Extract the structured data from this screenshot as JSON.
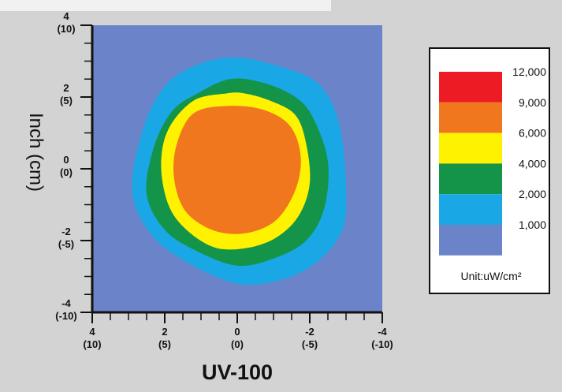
{
  "chart_data": {
    "type": "heatmap",
    "title": "UV-100",
    "xlabel": "",
    "ylabel": "Inch (cm)",
    "x_ticks": [
      {
        "value": 4,
        "inch": "4",
        "cm": "(10)"
      },
      {
        "value": 2,
        "inch": "2",
        "cm": "(5)"
      },
      {
        "value": 0,
        "inch": "0",
        "cm": "(0)"
      },
      {
        "value": -2,
        "inch": "-2",
        "cm": "(-5)"
      },
      {
        "value": -4,
        "inch": "-4",
        "cm": "(-10)"
      }
    ],
    "y_ticks": [
      {
        "value": 4,
        "inch": "4",
        "cm": "(10)"
      },
      {
        "value": 2,
        "inch": "2",
        "cm": "(5)"
      },
      {
        "value": 0,
        "inch": "0",
        "cm": "(0)"
      },
      {
        "value": -2,
        "inch": "-2",
        "cm": "(-5)"
      },
      {
        "value": -4,
        "inch": "-4",
        "cm": "(-10)"
      }
    ],
    "xlim": [
      4,
      -4
    ],
    "ylim": [
      -4,
      4
    ],
    "background_color": "#6b83c8",
    "contours": [
      {
        "level": "1,000",
        "color": "#1aa7e6",
        "points": [
          [
            0.1,
            3.1
          ],
          [
            1.1,
            2.9
          ],
          [
            2.0,
            2.3
          ],
          [
            2.6,
            1.1
          ],
          [
            2.9,
            -0.6
          ],
          [
            2.4,
            -1.8
          ],
          [
            1.4,
            -2.6
          ],
          [
            0.0,
            -3.2
          ],
          [
            -1.2,
            -3.1
          ],
          [
            -2.2,
            -2.6
          ],
          [
            -2.9,
            -1.7
          ],
          [
            -3.0,
            -0.5
          ],
          [
            -2.8,
            1.3
          ],
          [
            -2.2,
            2.4
          ],
          [
            -1.0,
            2.9
          ]
        ]
      },
      {
        "level": "2,000",
        "color": "#149449",
        "points": [
          [
            0.2,
            2.5
          ],
          [
            1.1,
            2.1
          ],
          [
            1.8,
            1.6
          ],
          [
            2.3,
            0.6
          ],
          [
            2.5,
            -0.7
          ],
          [
            2.0,
            -1.7
          ],
          [
            1.1,
            -2.3
          ],
          [
            0.0,
            -2.7
          ],
          [
            -1.0,
            -2.5
          ],
          [
            -1.9,
            -2.0
          ],
          [
            -2.4,
            -1.1
          ],
          [
            -2.5,
            0.2
          ],
          [
            -2.1,
            1.4
          ],
          [
            -1.6,
            2.0
          ],
          [
            -0.7,
            2.4
          ]
        ]
      },
      {
        "level": "4,000",
        "color": "#fff200",
        "points": [
          [
            0.3,
            2.1
          ],
          [
            1.2,
            1.9
          ],
          [
            1.9,
            1.1
          ],
          [
            2.1,
            0.1
          ],
          [
            1.9,
            -1.0
          ],
          [
            1.4,
            -1.7
          ],
          [
            0.6,
            -2.2
          ],
          [
            -0.3,
            -2.2
          ],
          [
            -1.1,
            -1.9
          ],
          [
            -1.7,
            -1.3
          ],
          [
            -2.0,
            -0.4
          ],
          [
            -1.9,
            0.7
          ],
          [
            -1.6,
            1.5
          ],
          [
            -0.9,
            1.9
          ],
          [
            -0.2,
            2.1
          ]
        ]
      },
      {
        "level": "6,000",
        "color": "#f0771e",
        "points": [
          [
            0.3,
            1.75
          ],
          [
            1.2,
            1.55
          ],
          [
            1.65,
            0.75
          ],
          [
            1.75,
            -0.2
          ],
          [
            1.45,
            -1.15
          ],
          [
            0.7,
            -1.7
          ],
          [
            -0.2,
            -1.8
          ],
          [
            -1.05,
            -1.45
          ],
          [
            -1.6,
            -0.6
          ],
          [
            -1.75,
            0.35
          ],
          [
            -1.45,
            1.2
          ],
          [
            -0.7,
            1.65
          ]
        ]
      }
    ],
    "legend": {
      "unit": "Unit:uW/cm²",
      "entries": [
        {
          "label": "12,000",
          "color": "#ed1c24"
        },
        {
          "label": "9,000",
          "color": "#f0771e"
        },
        {
          "label": "6,000",
          "color": "#fff200"
        },
        {
          "label": "4,000",
          "color": "#149449"
        },
        {
          "label": "2,000",
          "color": "#1aa7e6"
        },
        {
          "label": "1,000",
          "color": "#6b83c8"
        }
      ]
    }
  }
}
